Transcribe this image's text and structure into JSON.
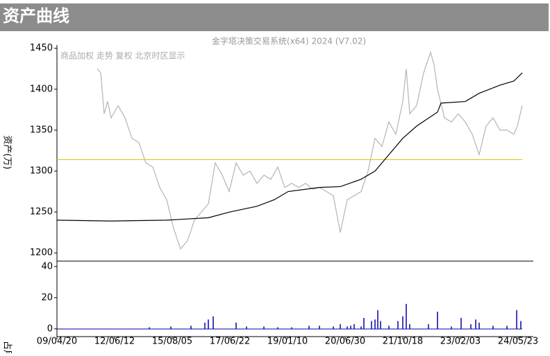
{
  "header": {
    "title": "资产曲线"
  },
  "chart_data": [
    {
      "type": "line",
      "subtitle": "金字塔决策交易系统(x64) 2024 (V7.02)",
      "annotation": "商品加权 走势 复权 北京时区显示",
      "y_label": "资产(万)",
      "xlim": [
        0,
        686
      ],
      "ylim": [
        1190,
        1454
      ],
      "yticks": [
        1200,
        1250,
        1300,
        1350,
        1400,
        1450
      ],
      "reference_line": {
        "value": 1314,
        "color": "#d6c800"
      },
      "series": [
        {
          "color": "#b4b4b4",
          "x": [
            58,
            63,
            68,
            73,
            78,
            88,
            98,
            108,
            118,
            128,
            138,
            148,
            158,
            168,
            178,
            188,
            198,
            208,
            218,
            228,
            238,
            248,
            258,
            268,
            278,
            288,
            298,
            308,
            318,
            328,
            338,
            348,
            358,
            368,
            378,
            388,
            398,
            408,
            418,
            428,
            438,
            448,
            458,
            468,
            478,
            488,
            498,
            503,
            508,
            518,
            528,
            538,
            543,
            548,
            558,
            568,
            578,
            588,
            598,
            608,
            618,
            628,
            638,
            648,
            658,
            663,
            670
          ],
          "values": [
            1425,
            1420,
            1370,
            1385,
            1365,
            1380,
            1365,
            1340,
            1335,
            1310,
            1305,
            1280,
            1265,
            1230,
            1205,
            1215,
            1240,
            1250,
            1260,
            1310,
            1295,
            1275,
            1310,
            1295,
            1300,
            1285,
            1295,
            1290,
            1305,
            1280,
            1285,
            1280,
            1285,
            1278,
            1280,
            1275,
            1270,
            1225,
            1265,
            1270,
            1275,
            1300,
            1340,
            1330,
            1360,
            1345,
            1385,
            1425,
            1370,
            1380,
            1420,
            1445,
            1430,
            1400,
            1365,
            1360,
            1370,
            1360,
            1345,
            1320,
            1355,
            1365,
            1350,
            1350,
            1345,
            1355,
            1380
          ]
        },
        {
          "color": "#000000",
          "x": [
            0,
            78,
            158,
            218,
            249,
            288,
            313,
            333,
            378,
            408,
            438,
            458,
            478,
            498,
            518,
            548,
            553,
            588,
            608,
            638,
            658,
            670
          ],
          "values": [
            1240,
            1239,
            1240,
            1243,
            1250,
            1257,
            1265,
            1275,
            1280,
            1281,
            1290,
            1300,
            1320,
            1340,
            1355,
            1372,
            1383,
            1385,
            1395,
            1405,
            1410,
            1420
          ]
        }
      ]
    },
    {
      "type": "bar",
      "y_label": "占用",
      "color": "#0000aa",
      "xlim": [
        0,
        686
      ],
      "ylim": [
        -5,
        43.5
      ],
      "yticks": [
        0,
        20,
        40
      ],
      "xticks": [
        {
          "value": 0,
          "label": "09/04/20"
        },
        {
          "value": 83,
          "label": "12/06/12"
        },
        {
          "value": 166,
          "label": "15/08/05"
        },
        {
          "value": 249,
          "label": "17/06/22"
        },
        {
          "value": 332,
          "label": "19/01/10"
        },
        {
          "value": 415,
          "label": "20/06/30"
        },
        {
          "value": 498,
          "label": "21/10/18"
        },
        {
          "value": 581,
          "label": "23/02/03"
        },
        {
          "value": 664,
          "label": "24/05/23"
        }
      ],
      "x": [
        133,
        164,
        193,
        213,
        218,
        225,
        258,
        273,
        298,
        318,
        338,
        363,
        378,
        398,
        408,
        418,
        423,
        428,
        438,
        442,
        453,
        458,
        462,
        466,
        478,
        491,
        498,
        503,
        508,
        535,
        548,
        568,
        582,
        596,
        603,
        608,
        628,
        648,
        662,
        668
      ],
      "values": [
        1,
        1.5,
        2,
        4,
        6,
        8,
        4,
        1.5,
        1.5,
        1,
        1,
        2,
        2,
        1.5,
        3,
        1.5,
        2,
        3,
        1.5,
        7,
        5,
        6,
        12,
        5,
        2,
        5,
        8,
        16,
        3,
        3,
        11,
        1.5,
        7,
        3,
        6,
        4,
        2,
        2,
        12,
        5
      ]
    }
  ]
}
